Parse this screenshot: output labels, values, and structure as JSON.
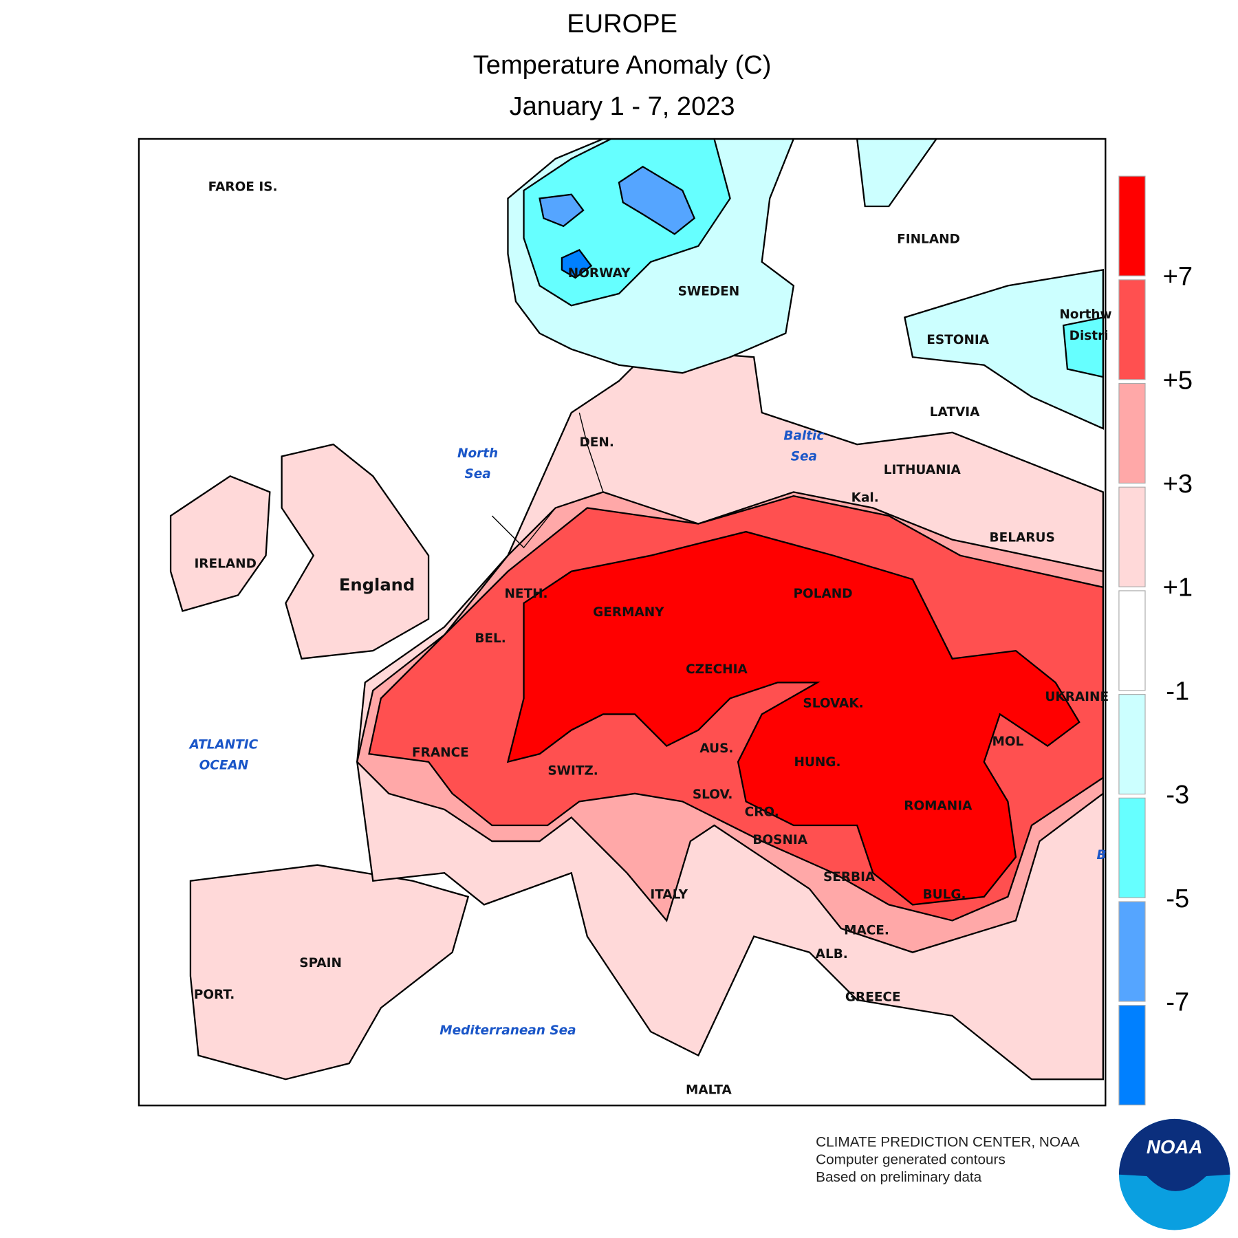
{
  "header": {
    "title": [
      "EUROPE",
      "Temperature Anomaly (C)",
      "January 1 - 7, 2023"
    ]
  },
  "map": {
    "labels": [
      "FAROE IS.",
      "FINLAND",
      "NORWAY",
      "SWEDEN",
      "ESTONIA",
      "LATVIA",
      "Northw",
      "Distri",
      "DEN.",
      "LITHUANIA",
      "Kal.",
      "IRELAND",
      "BELARUS",
      "England",
      "NETH.",
      "POLAND",
      "GERMANY",
      "BEL.",
      "CZECHIA",
      "SLOVAK.",
      "UKRAINE",
      "FRANCE",
      "AUS.",
      "MOL",
      "HUNG.",
      "SWITZ.",
      "SLOV.",
      "ROMANIA",
      "CRO.",
      "BOSNIA",
      "SERBIA",
      "ITALY",
      "BULG.",
      "MACE.",
      "ALB.",
      "SPAIN",
      "GREECE",
      "PORT.",
      "MALTA"
    ],
    "seas": [
      [
        "North",
        "Sea"
      ],
      [
        "Baltic",
        "Sea"
      ],
      [
        "ATLANTIC",
        "OCEAN"
      ],
      [
        "Mediterranean Sea"
      ],
      [
        "B"
      ]
    ]
  },
  "legend": {
    "colors": [
      "#ff0000",
      "#ff5050",
      "#ffa8a8",
      "#ffd9d9",
      "#ffffff",
      "#ccffff",
      "#66ffff",
      "#55a5ff",
      "#0080ff"
    ],
    "ticks": [
      "+7",
      "+5",
      "+3",
      "+1",
      "-1",
      "-3",
      "-5",
      "-7"
    ]
  },
  "footer": [
    "CLIMATE PREDICTION CENTER, NOAA",
    "Computer generated contours",
    "Based on preliminary data"
  ],
  "logo": "NOAA"
}
